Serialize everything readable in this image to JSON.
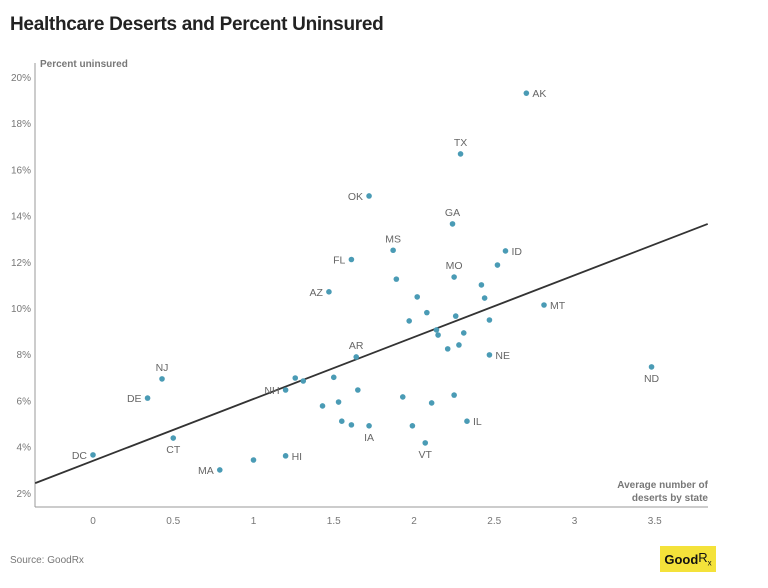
{
  "chart_data": {
    "type": "scatter",
    "title": "Healthcare Deserts and Percent Uninsured",
    "xlabel": "Average number of deserts by state",
    "ylabel": "Percent uninsured",
    "xlim": [
      -0.36,
      3.83
    ],
    "ylim": [
      2,
      20.7
    ],
    "x_ticks": [
      "0",
      "0.5",
      "1",
      "1.5",
      "2",
      "2.5",
      "3",
      "3.5"
    ],
    "x_tick_values": [
      0,
      0.5,
      1,
      1.5,
      2,
      2.5,
      3,
      3.5
    ],
    "y_ticks": [
      "2%",
      "4%",
      "6%",
      "8%",
      "10%",
      "12%",
      "14%",
      "16%",
      "18%",
      "20%"
    ],
    "y_tick_values": [
      2,
      4,
      6,
      8,
      10,
      12,
      14,
      16,
      18,
      20
    ],
    "grid": false,
    "point_color": "#4a9bb5",
    "trendline": {
      "color": "#333333",
      "x": [
        -0.36,
        3.83
      ],
      "y": [
        2.42,
        13.64
      ]
    },
    "points": [
      {
        "x": 2.7,
        "y": 19.3,
        "label": "AK"
      },
      {
        "x": 2.29,
        "y": 16.67,
        "label": "TX"
      },
      {
        "x": 1.72,
        "y": 14.85,
        "label": "OK"
      },
      {
        "x": 2.24,
        "y": 13.64,
        "label": "GA"
      },
      {
        "x": 1.87,
        "y": 12.5,
        "label": "MS"
      },
      {
        "x": 2.57,
        "y": 12.47,
        "label": "ID"
      },
      {
        "x": 1.61,
        "y": 12.1,
        "label": "FL"
      },
      {
        "x": 2.52,
        "y": 11.86,
        "label": ""
      },
      {
        "x": 2.25,
        "y": 11.34,
        "label": "MO"
      },
      {
        "x": 1.89,
        "y": 11.25,
        "label": ""
      },
      {
        "x": 1.47,
        "y": 10.7,
        "label": "AZ"
      },
      {
        "x": 2.42,
        "y": 11.0,
        "label": ""
      },
      {
        "x": 2.02,
        "y": 10.48,
        "label": ""
      },
      {
        "x": 2.44,
        "y": 10.43,
        "label": ""
      },
      {
        "x": 2.81,
        "y": 10.13,
        "label": "MT"
      },
      {
        "x": 2.08,
        "y": 9.8,
        "label": ""
      },
      {
        "x": 2.26,
        "y": 9.65,
        "label": ""
      },
      {
        "x": 1.97,
        "y": 9.44,
        "label": ""
      },
      {
        "x": 2.47,
        "y": 9.48,
        "label": ""
      },
      {
        "x": 2.14,
        "y": 9.05,
        "label": ""
      },
      {
        "x": 2.31,
        "y": 8.92,
        "label": ""
      },
      {
        "x": 2.15,
        "y": 8.83,
        "label": ""
      },
      {
        "x": 2.28,
        "y": 8.4,
        "label": ""
      },
      {
        "x": 2.21,
        "y": 8.23,
        "label": ""
      },
      {
        "x": 2.47,
        "y": 7.97,
        "label": "NE"
      },
      {
        "x": 1.64,
        "y": 7.88,
        "label": "AR"
      },
      {
        "x": 3.48,
        "y": 7.45,
        "label": "ND"
      },
      {
        "x": 0.43,
        "y": 6.93,
        "label": "NJ"
      },
      {
        "x": 1.26,
        "y": 6.97,
        "label": ""
      },
      {
        "x": 1.5,
        "y": 7.0,
        "label": ""
      },
      {
        "x": 1.31,
        "y": 6.84,
        "label": ""
      },
      {
        "x": 1.2,
        "y": 6.45,
        "label": "NH"
      },
      {
        "x": 1.65,
        "y": 6.45,
        "label": ""
      },
      {
        "x": 0.34,
        "y": 6.1,
        "label": "DE"
      },
      {
        "x": 1.93,
        "y": 6.15,
        "label": ""
      },
      {
        "x": 2.25,
        "y": 6.23,
        "label": ""
      },
      {
        "x": 1.53,
        "y": 5.93,
        "label": ""
      },
      {
        "x": 1.43,
        "y": 5.76,
        "label": ""
      },
      {
        "x": 2.11,
        "y": 5.89,
        "label": ""
      },
      {
        "x": 2.33,
        "y": 5.1,
        "label": "IL"
      },
      {
        "x": 1.55,
        "y": 5.1,
        "label": ""
      },
      {
        "x": 1.61,
        "y": 4.94,
        "label": ""
      },
      {
        "x": 1.72,
        "y": 4.9,
        "label": "IA"
      },
      {
        "x": 1.99,
        "y": 4.9,
        "label": ""
      },
      {
        "x": 0.5,
        "y": 4.37,
        "label": "CT"
      },
      {
        "x": 2.07,
        "y": 4.16,
        "label": "VT"
      },
      {
        "x": 0.0,
        "y": 3.64,
        "label": "DC"
      },
      {
        "x": 1.2,
        "y": 3.6,
        "label": "HI"
      },
      {
        "x": 1.0,
        "y": 3.42,
        "label": ""
      },
      {
        "x": 0.79,
        "y": 2.99,
        "label": "MA"
      }
    ]
  },
  "footer": {
    "source": "Source: GoodRx",
    "logo_text": "GoodRx"
  }
}
